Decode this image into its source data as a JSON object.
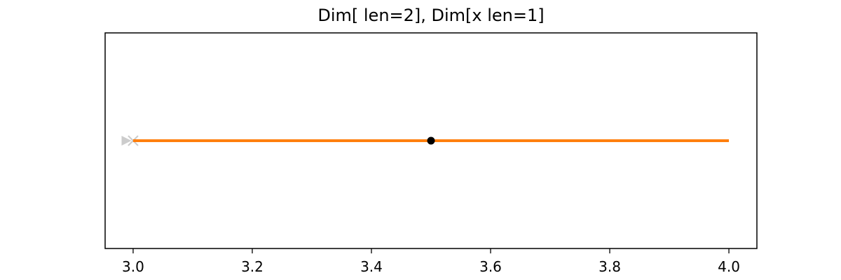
{
  "chart_data": {
    "type": "line",
    "title": "Dim[ len=2], Dim[x len=1]",
    "xlabel": "",
    "ylabel": "",
    "xlim": [
      2.953,
      4.047
    ],
    "ylim": [
      0,
      1
    ],
    "grid": false,
    "yticks_visible": false,
    "x_ticks": [
      3.0,
      3.2,
      3.4,
      3.6,
      3.8,
      4.0
    ],
    "x_tick_labels": [
      "3.0",
      "3.2",
      "3.4",
      "3.6",
      "3.8",
      "4.0"
    ],
    "series": [
      {
        "x": [
          3.0,
          4.0
        ],
        "y": [
          0.5,
          0.5
        ],
        "color": "#ff7f0e",
        "style": "line"
      }
    ],
    "markers": [
      {
        "x": 3.5,
        "y": 0.5,
        "shape": "circle",
        "color": "#000000"
      },
      {
        "x": 3.0,
        "y": 0.5,
        "shape": "x",
        "color": "#cccccc"
      },
      {
        "x": 2.99,
        "y": 0.5,
        "shape": "triangle-right",
        "color": "#cccccc"
      }
    ]
  }
}
